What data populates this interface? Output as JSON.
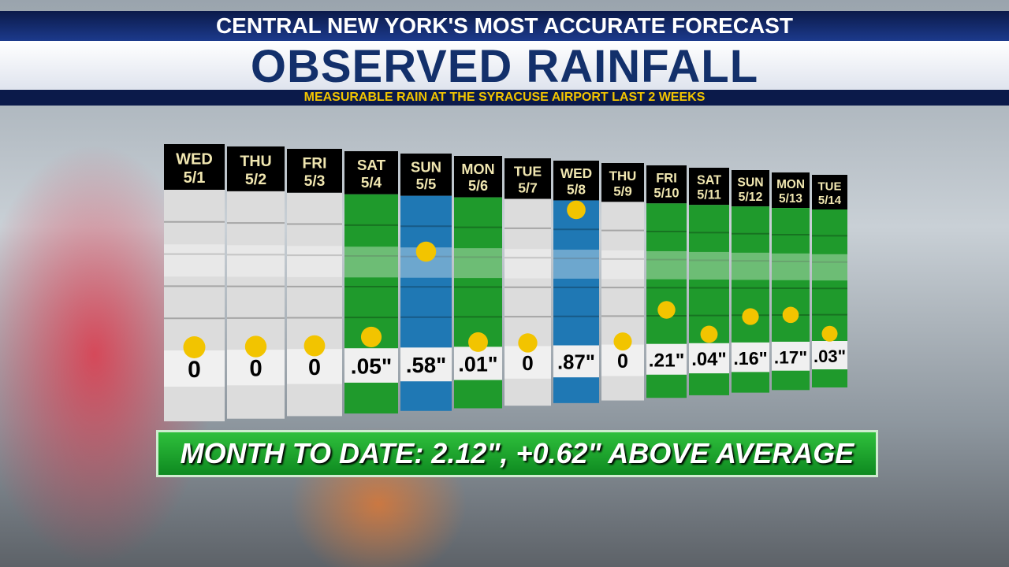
{
  "header": {
    "tagline": "CENTRAL NEW YORK'S MOST ACCURATE FORECAST",
    "title": "OBSERVED RAINFALL",
    "subtitle": "MEASURABLE RAIN AT THE SYRACUSE AIRPORT LAST 2 WEEKS"
  },
  "chart_data": {
    "type": "dot-columns",
    "categories": [
      "WED",
      "THU",
      "FRI",
      "SAT",
      "SUN",
      "MON",
      "TUE",
      "WED",
      "THU",
      "FRI",
      "SAT",
      "SUN",
      "MON",
      "TUE"
    ],
    "dates": [
      "5/1",
      "5/2",
      "5/3",
      "5/4",
      "5/5",
      "5/6",
      "5/7",
      "5/8",
      "5/9",
      "5/10",
      "5/11",
      "5/12",
      "5/13",
      "5/14"
    ],
    "values": [
      0,
      0,
      0,
      0.05,
      0.58,
      0.01,
      0,
      0.87,
      0,
      0.21,
      0.04,
      0.16,
      0.17,
      0.03
    ],
    "value_labels": [
      "0",
      "0",
      "0",
      ".05\"",
      ".58\"",
      ".01\"",
      "0",
      ".87\"",
      "0",
      ".21\"",
      ".04\"",
      ".16\"",
      ".17\"",
      ".03\""
    ],
    "colors": [
      "#dcdcdc",
      "#dcdcdc",
      "#dcdcdc",
      "#1f9a2c",
      "#1f78b4",
      "#1f9a2c",
      "#dcdcdc",
      "#1f78b4",
      "#dcdcdc",
      "#1f9a2c",
      "#1f9a2c",
      "#1f9a2c",
      "#1f9a2c",
      "#1f9a2c"
    ],
    "dot_color": "#f2c400"
  },
  "footer": {
    "summary": "MONTH TO DATE: 2.12\", +0.62\" ABOVE AVERAGE"
  }
}
